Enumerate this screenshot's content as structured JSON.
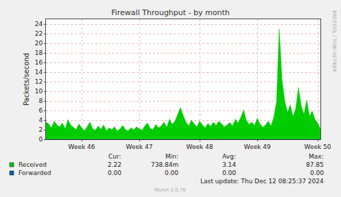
{
  "chart_data": {
    "type": "area",
    "title": "Firewall Throughput - by month",
    "y_label": "Packets/second",
    "categories": [
      null,
      null,
      null,
      null,
      null,
      null,
      null,
      null,
      null,
      null,
      null,
      null,
      null,
      "Week 46",
      null,
      null,
      null,
      null,
      null,
      null,
      null,
      null,
      null,
      null,
      null,
      null,
      null,
      null,
      null,
      null,
      null,
      null,
      null,
      null,
      "Week 47",
      null,
      null,
      null,
      null,
      null,
      null,
      null,
      null,
      null,
      null,
      null,
      null,
      null,
      null,
      null,
      null,
      null,
      null,
      null,
      null,
      null,
      "Week 48",
      null,
      null,
      null,
      null,
      null,
      null,
      null,
      null,
      null,
      null,
      null,
      null,
      null,
      null,
      null,
      null,
      null,
      null,
      null,
      null,
      "Week 49",
      null,
      null,
      null,
      null,
      null,
      null,
      null,
      null,
      null,
      null,
      null,
      null,
      null,
      null,
      null,
      null,
      null,
      null,
      null,
      null,
      null,
      "Week 50",
      null
    ],
    "series": [
      {
        "name": "Received",
        "color": "#00cc00",
        "values": [
          3.6,
          3.2,
          2.4,
          3.8,
          3.0,
          2.6,
          3.4,
          2.2,
          4.1,
          3.0,
          2.5,
          2.0,
          3.2,
          2.4,
          1.8,
          2.6,
          3.6,
          2.2,
          1.9,
          2.8,
          2.1,
          3.0,
          1.8,
          2.4,
          2.0,
          2.6,
          1.7,
          2.2,
          2.9,
          2.0,
          1.8,
          2.4,
          2.0,
          2.6,
          2.2,
          1.9,
          2.8,
          3.4,
          2.3,
          2.0,
          3.1,
          2.4,
          2.8,
          3.6,
          2.5,
          4.2,
          3.1,
          3.8,
          5.2,
          6.6,
          5.0,
          3.6,
          2.8,
          4.0,
          3.2,
          2.6,
          3.8,
          3.0,
          2.4,
          3.3,
          2.7,
          3.6,
          2.9,
          3.8,
          3.2,
          2.6,
          3.0,
          3.5,
          2.8,
          4.2,
          3.4,
          4.6,
          6.1,
          4.0,
          3.1,
          3.6,
          2.9,
          4.4,
          3.2,
          2.5,
          3.0,
          3.8,
          2.8,
          4.6,
          7.8,
          23.0,
          12.5,
          8.0,
          5.6,
          7.2,
          4.8,
          6.4,
          10.8,
          7.0,
          5.2,
          8.2,
          4.8,
          5.9,
          4.2,
          3.4,
          2.2
        ]
      },
      {
        "name": "Forwarded",
        "color": "#0066b3",
        "values": [
          0,
          0,
          0,
          0,
          0,
          0,
          0,
          0,
          0,
          0,
          0,
          0,
          0,
          0,
          0,
          0,
          0,
          0,
          0,
          0,
          0,
          0,
          0,
          0,
          0,
          0,
          0,
          0,
          0,
          0,
          0,
          0,
          0,
          0,
          0,
          0,
          0,
          0,
          0,
          0,
          0,
          0,
          0,
          0,
          0,
          0,
          0,
          0,
          0,
          0,
          0,
          0,
          0,
          0,
          0,
          0,
          0,
          0,
          0,
          0,
          0,
          0,
          0,
          0,
          0,
          0,
          0,
          0,
          0,
          0,
          0,
          0,
          0,
          0,
          0,
          0,
          0,
          0,
          0,
          0,
          0,
          0,
          0,
          0,
          0,
          0,
          0,
          0,
          0,
          0,
          0,
          0,
          0,
          0,
          0,
          0,
          0,
          0,
          0,
          0,
          0
        ]
      }
    ],
    "ylim": [
      0,
      25
    ],
    "yticks": [
      0,
      2,
      4,
      6,
      8,
      10,
      12,
      14,
      16,
      18,
      20,
      22,
      24
    ],
    "grid": true,
    "legend_table": {
      "columns": [
        "Cur:",
        "Min:",
        "Avg:",
        "Max:"
      ],
      "rows": [
        {
          "name": "Received",
          "values": [
            "2.22",
            "738.84m",
            "3.14",
            "87.85"
          ]
        },
        {
          "name": "Forwarded",
          "values": [
            "0.00",
            "0.00",
            "0.00",
            "0.00"
          ]
        }
      ]
    },
    "last_update": "Last update: Thu Dec 12 08:25:37 2024",
    "footer": "Munin 2.0.76",
    "side_text": "RRDTOOL / TOBI OETIKER"
  }
}
